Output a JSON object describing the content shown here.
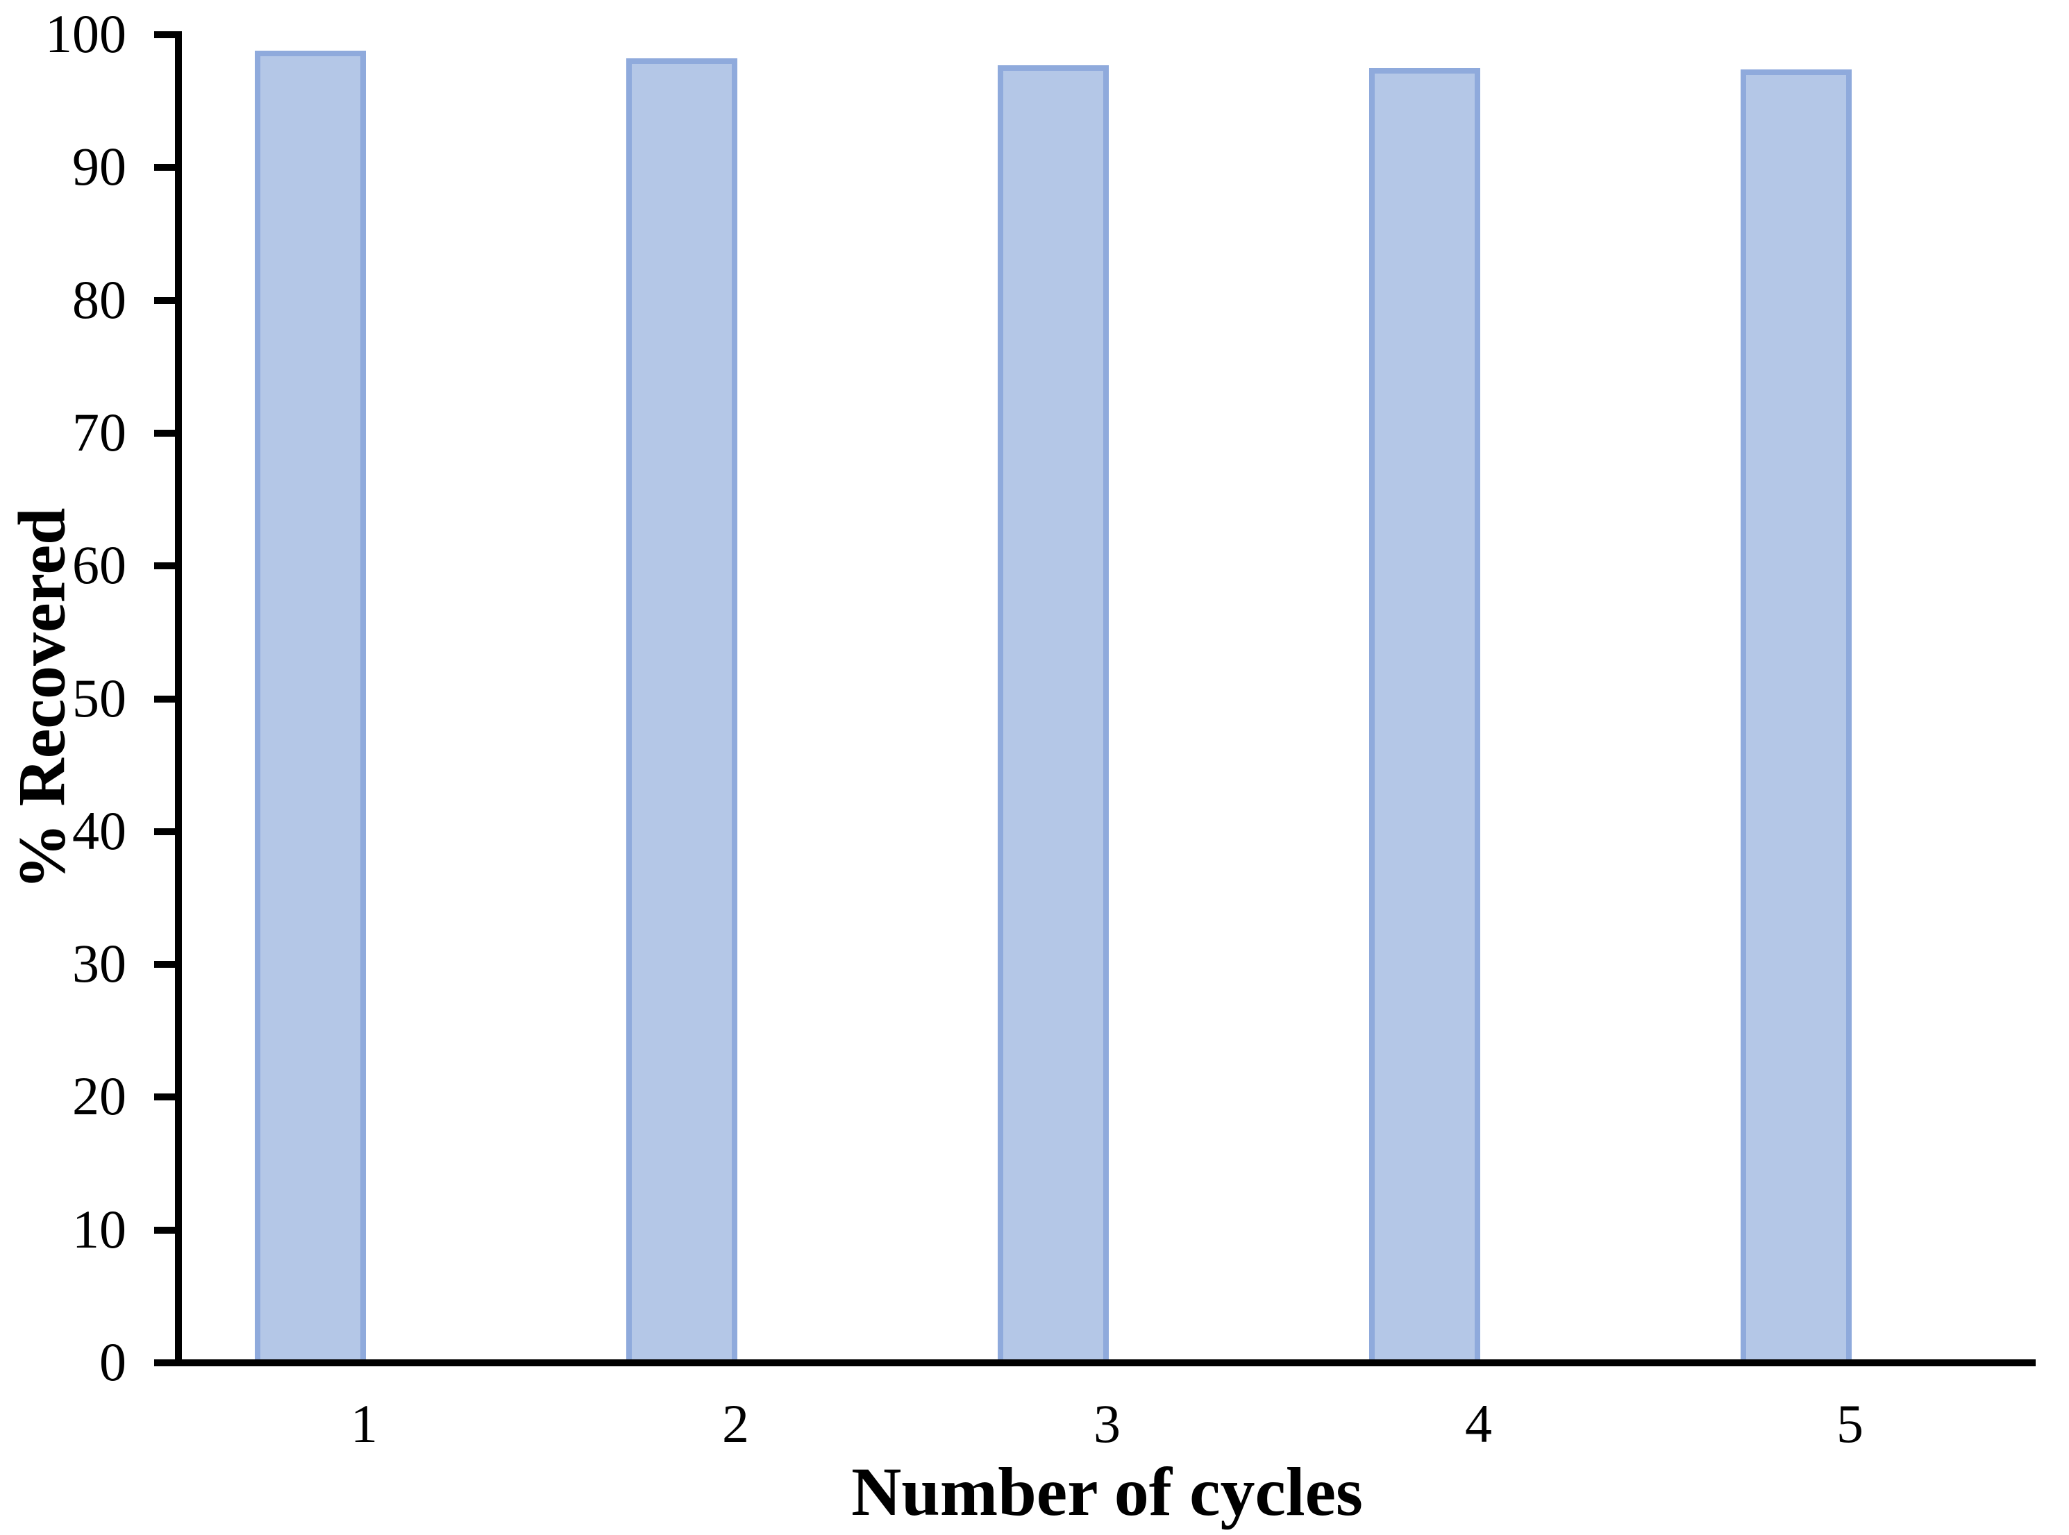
{
  "chart_data": {
    "type": "bar",
    "categories": [
      "1",
      "2",
      "3",
      "4",
      "5"
    ],
    "values": [
      98.8,
      98.2,
      97.7,
      97.5,
      97.4
    ],
    "title": "",
    "xlabel": "Number of cycles",
    "ylabel": "% Recovered",
    "ylim": [
      0,
      100
    ],
    "yticks": [
      0,
      10,
      20,
      30,
      40,
      50,
      60,
      70,
      80,
      90,
      100
    ],
    "grid": false,
    "legend_position": "none",
    "bar_fill_color": "#b4c7e7",
    "bar_border_color": "#8faadc",
    "axis_color": "#000000",
    "background_color": "#ffffff"
  }
}
